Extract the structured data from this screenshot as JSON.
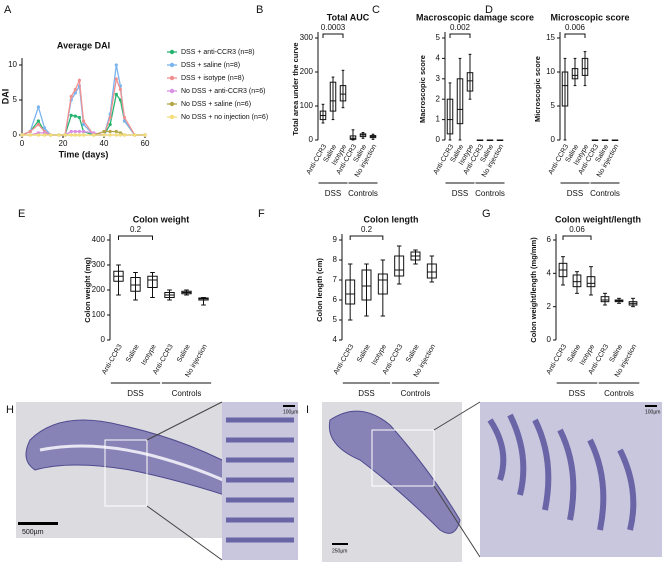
{
  "chart_data": [
    {
      "type": "line",
      "label": "A",
      "title": "Average DAI",
      "x_label": "Time (days)",
      "y_label": "DAI",
      "x": [
        0,
        4,
        8,
        11,
        14,
        18,
        21,
        24,
        26,
        28,
        30,
        35,
        40,
        43,
        46,
        48,
        50,
        55,
        60
      ],
      "xlim": [
        0,
        60
      ],
      "xticks": [
        0,
        20,
        40,
        60
      ],
      "ylim": [
        0,
        11
      ],
      "yticks": [
        0,
        5,
        10
      ],
      "series": [
        {
          "name": "DSS + anti-CCR3 (n=8)",
          "color": "#26b36f",
          "values": [
            0,
            0.5,
            2,
            0.5,
            0,
            0,
            0,
            2.8,
            2.7,
            2.5,
            0.5,
            0,
            0,
            1.5,
            5.8,
            5,
            2,
            0,
            0
          ]
        },
        {
          "name": "DSS + saline (n=8)",
          "color": "#7ab4ee",
          "values": [
            0,
            0.5,
            4,
            1,
            0,
            0,
            0,
            5,
            6,
            7,
            1.5,
            0,
            0,
            3,
            10,
            7,
            2,
            0,
            0
          ]
        },
        {
          "name": "DSS + isotype (n=8)",
          "color": "#f29090",
          "values": [
            0,
            0.5,
            1.5,
            0.5,
            0,
            0,
            0,
            5.5,
            6.5,
            7.8,
            2,
            0,
            0,
            2.5,
            8,
            6.5,
            2.5,
            0,
            0
          ]
        },
        {
          "name": "No DSS + anti-CCR3 (n=6)",
          "color": "#d990e3",
          "values": [
            0,
            0,
            0.3,
            0.3,
            0,
            0,
            0,
            0.5,
            0.5,
            0.5,
            0.5,
            0.3,
            0,
            0,
            0,
            0,
            0,
            0,
            0
          ]
        },
        {
          "name": "No DSS + saline (n=6)",
          "color": "#b3a54a",
          "values": [
            0,
            0,
            0,
            0,
            0,
            0,
            0,
            0,
            0,
            0,
            0,
            0,
            0.5,
            0.5,
            0.5,
            0.3,
            0,
            0,
            0
          ]
        },
        {
          "name": "No DSS + no injection (n=6)",
          "color": "#f3de78",
          "values": [
            0,
            0,
            0,
            0,
            0,
            0,
            0,
            0,
            0,
            0,
            0,
            0,
            0,
            0,
            0,
            0,
            0,
            0,
            0
          ]
        }
      ]
    },
    {
      "type": "box",
      "label": "B",
      "title": "Total AUC",
      "y_label": "Total area under the curve",
      "annotation": "0.0003",
      "ylim": [
        0,
        300
      ],
      "yticks": [
        0,
        100,
        200,
        300
      ],
      "groups": [
        {
          "name": "DSS",
          "categories": [
            "Anti-CCR3",
            "Saline",
            "Isotype"
          ]
        },
        {
          "name": "Controls",
          "categories": [
            "Anti-CCR3",
            "Saline",
            "No injection"
          ]
        }
      ],
      "boxes": [
        {
          "min": 50,
          "q1": 60,
          "median": 72,
          "q3": 85,
          "max": 105
        },
        {
          "min": 60,
          "q1": 85,
          "median": 115,
          "q3": 170,
          "max": 185
        },
        {
          "min": 95,
          "q1": 115,
          "median": 135,
          "q3": 160,
          "max": 205
        },
        {
          "min": 0,
          "q1": 2,
          "median": 5,
          "q3": 12,
          "max": 30
        },
        {
          "min": 5,
          "q1": 10,
          "median": 15,
          "q3": 18,
          "max": 22
        },
        {
          "min": 2,
          "q1": 7,
          "median": 10,
          "q3": 13,
          "max": 17
        }
      ]
    },
    {
      "type": "box",
      "label": "C",
      "title": "Macroscopic damage score",
      "y_label": "Macroscopic score",
      "annotation": "0.002",
      "ylim": [
        0,
        5
      ],
      "yticks": [
        0,
        1,
        2,
        3,
        4,
        5
      ],
      "groups": [
        {
          "name": "DSS",
          "categories": [
            "Anti-CCR3",
            "Saline",
            "Isotype"
          ]
        },
        {
          "name": "Controls",
          "categories": [
            "Anti-CCR3",
            "Saline",
            "No injection"
          ]
        }
      ],
      "boxes": [
        {
          "min": 0,
          "q1": 0.3,
          "median": 1,
          "q3": 2,
          "max": 2.8
        },
        {
          "min": 0,
          "q1": 0.8,
          "median": 1.5,
          "q3": 3,
          "max": 4
        },
        {
          "min": 2,
          "q1": 2.4,
          "median": 2.9,
          "q3": 3.3,
          "max": 4.2
        },
        {
          "min": 0,
          "q1": 0,
          "median": 0,
          "q3": 0,
          "max": 0
        },
        {
          "min": 0,
          "q1": 0,
          "median": 0,
          "q3": 0,
          "max": 0
        },
        {
          "min": 0,
          "q1": 0,
          "median": 0,
          "q3": 0,
          "max": 0
        }
      ]
    },
    {
      "type": "box",
      "label": "D",
      "title": "Microscopic score",
      "y_label": "Microscopic score",
      "annotation": "0.006",
      "ylim": [
        0,
        15
      ],
      "yticks": [
        0,
        5,
        10,
        15
      ],
      "groups": [
        {
          "name": "DSS",
          "categories": [
            "Anti-CCR3",
            "Saline",
            "Isotype"
          ]
        },
        {
          "name": "Controls",
          "categories": [
            "Anti-CCR3",
            "Saline",
            "No injection"
          ]
        }
      ],
      "boxes": [
        {
          "min": 0,
          "q1": 5,
          "median": 8,
          "q3": 10,
          "max": 12
        },
        {
          "min": 8,
          "q1": 9,
          "median": 9.5,
          "q3": 10.5,
          "max": 12
        },
        {
          "min": 8,
          "q1": 9.5,
          "median": 10.5,
          "q3": 12,
          "max": 13
        },
        {
          "min": 0,
          "q1": 0,
          "median": 0,
          "q3": 0,
          "max": 0
        },
        {
          "min": 0,
          "q1": 0,
          "median": 0,
          "q3": 0,
          "max": 0
        },
        {
          "min": 0,
          "q1": 0,
          "median": 0,
          "q3": 0,
          "max": 0
        }
      ]
    },
    {
      "type": "box",
      "label": "E",
      "title": "Colon weight",
      "y_label": "Colon weight (mg)",
      "annotation": "0.2",
      "ylim": [
        0,
        400
      ],
      "yticks": [
        0,
        100,
        200,
        300,
        400
      ],
      "groups": [
        {
          "name": "DSS",
          "categories": [
            "Anti-CCR3",
            "Saline",
            "Isotype"
          ]
        },
        {
          "name": "Controls",
          "categories": [
            "Anti-CCR3",
            "Saline",
            "No injection"
          ]
        }
      ],
      "boxes": [
        {
          "min": 180,
          "q1": 235,
          "median": 255,
          "q3": 275,
          "max": 300
        },
        {
          "min": 160,
          "q1": 195,
          "median": 220,
          "q3": 250,
          "max": 270
        },
        {
          "min": 170,
          "q1": 210,
          "median": 240,
          "q3": 255,
          "max": 270
        },
        {
          "min": 160,
          "q1": 170,
          "median": 180,
          "q3": 190,
          "max": 200
        },
        {
          "min": 180,
          "q1": 185,
          "median": 190,
          "q3": 195,
          "max": 200
        },
        {
          "min": 140,
          "q1": 160,
          "median": 165,
          "q3": 168,
          "max": 170
        }
      ]
    },
    {
      "type": "box",
      "label": "F",
      "title": "Colon length",
      "y_label": "Colon length (cm)",
      "annotation": "0.2",
      "ylim": [
        4,
        9
      ],
      "yticks": [
        4,
        5,
        6,
        7,
        8,
        9
      ],
      "groups": [
        {
          "name": "DSS",
          "categories": [
            "Anti-CCR3",
            "Saline",
            "Isotype"
          ]
        },
        {
          "name": "Controls",
          "categories": [
            "Anti-CCR3",
            "Saline",
            "No injection"
          ]
        }
      ],
      "boxes": [
        {
          "min": 5,
          "q1": 5.8,
          "median": 6.3,
          "q3": 7,
          "max": 7.8
        },
        {
          "min": 5.2,
          "q1": 6,
          "median": 6.7,
          "q3": 7.5,
          "max": 7.8
        },
        {
          "min": 5.2,
          "q1": 6.3,
          "median": 7,
          "q3": 7.3,
          "max": 8
        },
        {
          "min": 6.8,
          "q1": 7.2,
          "median": 7.5,
          "q3": 8.2,
          "max": 8.7
        },
        {
          "min": 7.8,
          "q1": 8,
          "median": 8.2,
          "q3": 8.4,
          "max": 8.5
        },
        {
          "min": 6.9,
          "q1": 7.1,
          "median": 7.4,
          "q3": 7.8,
          "max": 8.2
        }
      ]
    },
    {
      "type": "box",
      "label": "G",
      "title": "Colon weight/length",
      "y_label": "Colon weight/length (mg/mm)",
      "annotation": "0.06",
      "ylim": [
        0,
        6
      ],
      "yticks": [
        0,
        2,
        4,
        6
      ],
      "groups": [
        {
          "name": "DSS",
          "categories": [
            "Anti-CCR3",
            "Saline",
            "Isotype"
          ]
        },
        {
          "name": "Controls",
          "categories": [
            "Anti-CCR3",
            "Saline",
            "No injection"
          ]
        }
      ],
      "boxes": [
        {
          "min": 3.3,
          "q1": 3.8,
          "median": 4.2,
          "q3": 4.6,
          "max": 5
        },
        {
          "min": 2.8,
          "q1": 3.2,
          "median": 3.5,
          "q3": 3.9,
          "max": 4.1
        },
        {
          "min": 2.7,
          "q1": 3.2,
          "median": 3.4,
          "q3": 3.8,
          "max": 4.4
        },
        {
          "min": 2.1,
          "q1": 2.3,
          "median": 2.4,
          "q3": 2.6,
          "max": 2.8
        },
        {
          "min": 2.2,
          "q1": 2.3,
          "median": 2.35,
          "q3": 2.4,
          "max": 2.5
        },
        {
          "min": 2,
          "q1": 2.1,
          "median": 2.2,
          "q3": 2.3,
          "max": 2.5
        }
      ]
    }
  ],
  "images": [
    {
      "label": "H",
      "scale_bars": [
        "500µm",
        "100µm"
      ]
    },
    {
      "label": "I",
      "scale_bars": [
        "250µm",
        "100µm"
      ]
    }
  ]
}
